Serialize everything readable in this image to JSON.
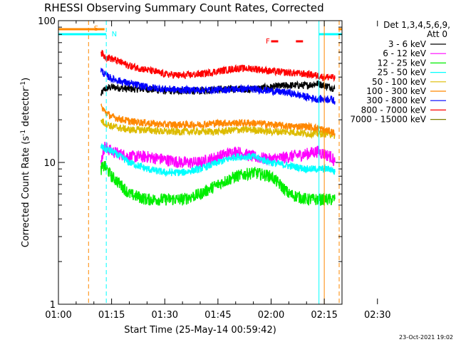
{
  "chart_data": {
    "type": "line",
    "title": "RHESSI Observing Summary Count Rates, Corrected",
    "xlabel": "Start Time (25-May-14 00:59:42)",
    "ylabel_main": "Corrected Count Rate (s",
    "ylabel_sup1": "-1",
    "ylabel_mid": " detector",
    "ylabel_sup2": "-1",
    "ylabel_end": ")",
    "yscale": "log",
    "xlim": [
      60,
      140
    ],
    "ylim": [
      1,
      100
    ],
    "x_ticks": [
      {
        "v": 60,
        "label": "01:00"
      },
      {
        "v": 75,
        "label": "01:15"
      },
      {
        "v": 90,
        "label": "01:30"
      },
      {
        "v": 105,
        "label": "01:45"
      },
      {
        "v": 120,
        "label": "02:00"
      },
      {
        "v": 135,
        "label": "02:15"
      },
      {
        "v": 150,
        "label": "02:30"
      }
    ],
    "y_ticks": [
      {
        "v": 1,
        "label": "1"
      },
      {
        "v": 10,
        "label": "10"
      },
      {
        "v": 100,
        "label": "100"
      }
    ],
    "legend_title": "Det 1,3,4,5,6,9,",
    "legend_att": "Att 0",
    "footer_date": "23-Oct-2021 19:02",
    "series": [
      {
        "name": "3 - 6 keV",
        "color": "#000000",
        "x": [
          72,
          73,
          75,
          80,
          85,
          90,
          95,
          100,
          105,
          110,
          115,
          120,
          125,
          130,
          133,
          135,
          137,
          138
        ],
        "y": [
          30,
          33,
          34,
          33,
          33,
          32,
          32,
          32,
          33,
          33,
          33,
          34,
          35,
          35,
          36,
          35,
          34,
          33
        ]
      },
      {
        "name": "6 - 12 keV",
        "color": "#ff00ff",
        "x": [
          72,
          73,
          75,
          80,
          85,
          90,
          95,
          100,
          105,
          110,
          115,
          120,
          125,
          130,
          133,
          135,
          137,
          138
        ],
        "y": [
          10,
          13,
          12,
          11,
          11,
          10.5,
          10,
          10,
          11,
          12,
          11,
          10.5,
          11,
          11.5,
          12,
          11.5,
          11,
          10
        ]
      },
      {
        "name": "12 - 25 keV",
        "color": "#00ee00",
        "x": [
          72,
          73,
          75,
          80,
          85,
          90,
          95,
          100,
          105,
          110,
          115,
          120,
          125,
          130,
          133,
          135,
          137,
          138
        ],
        "y": [
          9,
          9.5,
          8,
          6,
          5.5,
          5.5,
          5.5,
          6,
          7,
          8,
          8.5,
          8,
          6,
          5.5,
          5.5,
          5.5,
          5.5,
          5.5
        ]
      },
      {
        "name": "25 - 50 keV",
        "color": "#00ffff",
        "x": [
          72,
          73,
          75,
          80,
          85,
          90,
          95,
          100,
          105,
          110,
          115,
          120,
          125,
          130,
          133,
          135,
          137,
          138
        ],
        "y": [
          13,
          12.5,
          12,
          10,
          9,
          8.5,
          8.5,
          9,
          10,
          11,
          11,
          10,
          9.5,
          9,
          9,
          9,
          9,
          8.5
        ]
      },
      {
        "name": "50 - 100 keV",
        "color": "#ddbb00",
        "x": [
          72,
          73,
          75,
          80,
          85,
          90,
          95,
          100,
          105,
          110,
          115,
          120,
          125,
          130,
          133,
          135,
          137,
          138
        ],
        "y": [
          20,
          19,
          18,
          17,
          17,
          16.5,
          16.5,
          16.5,
          16.5,
          17,
          17,
          16.5,
          16.5,
          16,
          16,
          16,
          16,
          15.5
        ]
      },
      {
        "name": "100 - 300 keV",
        "color": "#ff8800",
        "x": [
          72,
          73,
          75,
          80,
          85,
          90,
          95,
          100,
          105,
          110,
          115,
          120,
          125,
          130,
          133,
          135,
          137,
          138
        ],
        "y": [
          25,
          23,
          21,
          19.5,
          19,
          18.5,
          18.5,
          18.5,
          19,
          19,
          19,
          18.5,
          18,
          18,
          17.5,
          17,
          16.5,
          16
        ]
      },
      {
        "name": "300 - 800 keV",
        "color": "#0000ff",
        "x": [
          72,
          73,
          75,
          80,
          85,
          90,
          95,
          100,
          105,
          110,
          115,
          120,
          125,
          130,
          133,
          135,
          137,
          138
        ],
        "y": [
          45,
          42,
          39,
          36,
          34,
          33,
          32.5,
          32.5,
          32.5,
          33,
          33,
          32,
          31,
          29,
          28,
          28,
          28,
          27
        ]
      },
      {
        "name": "800 - 7000 keV",
        "color": "#ff0000",
        "x": [
          72,
          73,
          75,
          80,
          85,
          90,
          95,
          100,
          105,
          110,
          115,
          120,
          125,
          130,
          133,
          135,
          137,
          138
        ],
        "y": [
          60,
          56,
          54,
          48,
          45,
          42,
          41,
          42,
          44,
          46,
          46,
          44,
          43,
          42,
          41,
          40,
          40,
          39
        ]
      },
      {
        "name": "7000 - 15000 keV",
        "color": "#808000",
        "x": [],
        "y": []
      }
    ],
    "annotations": {
      "saa_label": "S",
      "night_label": "N",
      "flare_label": "F"
    }
  },
  "colors": {
    "saa": "#ff8800",
    "night": "#00ffff",
    "flare": "#ff0000",
    "axis": "#000000"
  }
}
